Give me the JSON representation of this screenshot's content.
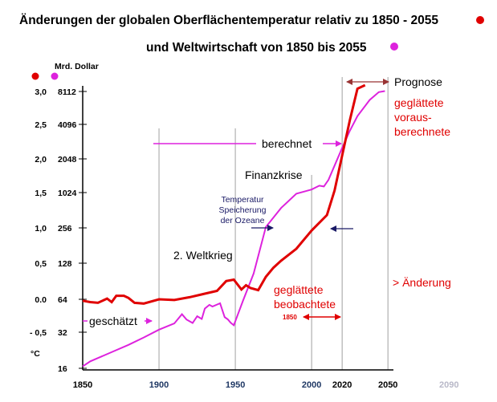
{
  "chart_data": {
    "type": "line",
    "title_line1": "Änderungen der globalen Oberflächentemperatur relativ zu 1850 - 2055",
    "title_line2": "und Weltwirtschaft von 1850 bis 2055",
    "y_left_unit": "°C",
    "y_right_unit": "Mrd. Dollar",
    "y_left_ticks": [
      "3,0",
      "2,5",
      "2,0",
      "1,5",
      "1,0",
      "0,5",
      "0.0",
      "- 0,5"
    ],
    "y_right_ticks": [
      "8112",
      "4096",
      "2048",
      "1024",
      "256",
      "128",
      "64",
      "32",
      "16"
    ],
    "x_ticks": [
      "1850",
      "1900",
      "1950",
      "2000",
      "2020",
      "2050",
      "2090"
    ],
    "xlim": [
      1850,
      2090
    ],
    "ylim_temperature": [
      -0.85,
      3.0
    ],
    "colors": {
      "temperature": "#e00000",
      "economy": "#dd22dd",
      "arrow_dark": "#1a1a66",
      "axis": "#000000",
      "grid": "#b0b0b0"
    },
    "annotations": {
      "prognose": "Prognose",
      "red_forecast": [
        "geglättete",
        "voraus-",
        "berechnete"
      ],
      "berechnet": "berechnet",
      "finanzkrise": "Finanzkrise",
      "ocean": [
        "Temperatur",
        "Speicherung",
        "der Ozeane"
      ],
      "weltkrieg": "2. Weltkrieg",
      "aenderung": "> Änderung",
      "observed": [
        "geglättete",
        "beobachtete"
      ],
      "year_1850": "1850",
      "geschaetzt": "geschätzt"
    },
    "series": [
      {
        "name": "Temperatur",
        "color": "#e00000",
        "x": [
          1850,
          1855,
          1860,
          1866,
          1869,
          1872,
          1877,
          1880,
          1884,
          1890,
          1900,
          1910,
          1920,
          1930,
          1938,
          1944,
          1949,
          1954,
          1957,
          1960,
          1965,
          1970,
          1975,
          1980,
          1990,
          2000,
          2010,
          2015,
          2020,
          2025,
          2030,
          2035
        ],
        "y": [
          -0.02,
          -0.04,
          -0.05,
          0.01,
          -0.04,
          0.05,
          0.05,
          0.02,
          -0.05,
          -0.06,
          0.0,
          -0.01,
          0.03,
          0.08,
          0.12,
          0.26,
          0.28,
          0.14,
          0.2,
          0.16,
          0.13,
          0.32,
          0.45,
          0.55,
          0.72,
          0.98,
          1.2,
          1.55,
          2.05,
          2.55,
          3.0,
          3.05
        ]
      },
      {
        "name": "Weltwirtschaft",
        "color": "#dd22dd",
        "x": [
          1850,
          1855,
          1860,
          1870,
          1880,
          1890,
          1900,
          1910,
          1915,
          1918,
          1922,
          1925,
          1928,
          1930,
          1933,
          1935,
          1940,
          1943,
          1945,
          1947,
          1949,
          1955,
          1962,
          1970,
          1980,
          1990,
          2000,
          2005,
          2008,
          2011,
          2020,
          2025,
          2030,
          2038,
          2044,
          2048
        ],
        "y": [
          16.6,
          18.3,
          19.5,
          22.1,
          25.1,
          28.9,
          33.8,
          38.5,
          46.7,
          41.8,
          38.9,
          44.8,
          42.3,
          52.6,
          57.0,
          55.0,
          58.8,
          44.0,
          42.0,
          39.0,
          37.0,
          62.0,
          105.0,
          265.0,
          560.0,
          980.0,
          1090.0,
          1180.0,
          1160.0,
          1330.0,
          2560.0,
          3600.0,
          4860.0,
          6800.0,
          8000.0,
          8180.0
        ]
      }
    ]
  }
}
